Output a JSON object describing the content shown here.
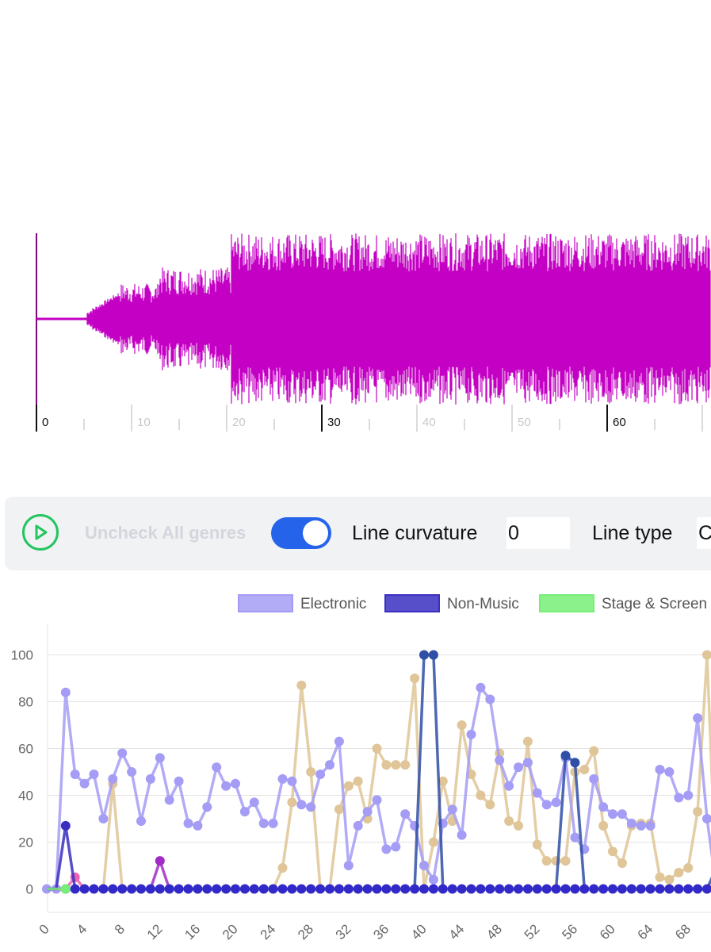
{
  "waveform": {
    "color": "#c400c4",
    "time_ticks": [
      "0",
      "10",
      "20",
      "30",
      "40",
      "50",
      "60"
    ],
    "highlighted_ticks": [
      "0",
      "30",
      "60"
    ]
  },
  "controls": {
    "play_icon": "play-circle-icon",
    "uncheck_label": "Uncheck All genres",
    "toggle_on": true,
    "curvature_label": "Line curvature",
    "curvature_value": "0",
    "linetype_label": "Line type",
    "linetype_value": "C"
  },
  "chart_data": {
    "type": "line",
    "title": "",
    "xlabel": "",
    "ylabel": "",
    "ylim": [
      -10,
      110
    ],
    "yticks": [
      0,
      20,
      40,
      60,
      80,
      100
    ],
    "x": [
      0,
      1,
      2,
      3,
      4,
      5,
      6,
      7,
      8,
      9,
      10,
      11,
      12,
      13,
      14,
      15,
      16,
      17,
      18,
      19,
      20,
      21,
      22,
      23,
      24,
      25,
      26,
      27,
      28,
      29,
      30,
      31,
      32,
      33,
      34,
      35,
      36,
      37,
      38,
      39,
      40,
      41,
      42,
      43,
      44,
      45,
      46,
      47,
      48,
      49,
      50,
      51,
      52,
      53,
      54,
      55,
      56,
      57,
      58,
      59,
      60,
      61,
      62,
      63,
      64,
      65,
      66,
      67,
      68,
      69,
      70,
      71
    ],
    "xticks": [
      0,
      4,
      8,
      12,
      16,
      20,
      24,
      28,
      32,
      36,
      40,
      44,
      48,
      52,
      56,
      60,
      64,
      68
    ],
    "legend_position": "top",
    "series": [
      {
        "name": "Electronic",
        "color": "#a49cf5",
        "values": [
          0,
          0,
          84,
          49,
          45,
          49,
          30,
          47,
          58,
          50,
          29,
          47,
          56,
          38,
          46,
          28,
          27,
          35,
          52,
          44,
          45,
          33,
          37,
          28,
          28,
          47,
          46,
          36,
          35,
          49,
          53,
          63,
          10,
          27,
          33,
          38,
          17,
          18,
          32,
          27,
          10,
          4,
          28,
          34,
          23,
          66,
          86,
          81,
          55,
          44,
          52,
          54,
          41,
          36,
          37,
          56,
          22,
          17,
          47,
          35,
          32,
          32,
          28,
          27,
          27,
          51,
          50,
          39,
          40,
          73,
          30,
          0
        ]
      },
      {
        "name": "Non-Music",
        "color": "#3a2fc1",
        "values": [
          0,
          0,
          27,
          0,
          0,
          0,
          0,
          0,
          0,
          0,
          0,
          0,
          0,
          0,
          0,
          0,
          0,
          0,
          0,
          0,
          0,
          0,
          0,
          0,
          0,
          0,
          0,
          0,
          0,
          0,
          0,
          0,
          0,
          0,
          0,
          0,
          0,
          0,
          0,
          0,
          0,
          0,
          0,
          0,
          0,
          0,
          0,
          0,
          0,
          0,
          0,
          0,
          0,
          0,
          0,
          0,
          0,
          0,
          0,
          0,
          0,
          0,
          0,
          0,
          0,
          0,
          0,
          0,
          0,
          0,
          0,
          0
        ]
      },
      {
        "name": "Stage & Screen",
        "color": "#77ee77",
        "values": [
          0,
          0,
          0,
          0,
          0,
          0,
          0,
          0,
          0,
          0,
          0,
          0,
          0,
          0,
          0,
          0,
          0,
          0,
          0,
          0,
          0,
          0,
          0,
          0,
          0,
          0,
          0,
          0,
          0,
          0,
          0,
          0,
          0,
          0,
          0,
          0,
          0,
          0,
          0,
          0,
          0,
          0,
          0,
          0,
          0,
          0,
          0,
          0,
          0,
          0,
          0,
          0,
          0,
          0,
          0,
          0,
          0,
          0,
          0,
          0,
          0,
          0,
          0,
          0,
          0,
          0,
          0,
          0,
          0,
          0,
          0,
          0
        ]
      },
      {
        "name": "",
        "color": "#dfc597",
        "values": [
          0,
          0,
          0,
          0,
          0,
          0,
          0,
          45,
          0,
          0,
          0,
          0,
          0,
          0,
          0,
          0,
          0,
          0,
          0,
          0,
          0,
          0,
          0,
          0,
          0,
          9,
          37,
          87,
          50,
          0,
          0,
          34,
          44,
          46,
          30,
          60,
          53,
          53,
          53,
          90,
          0,
          20,
          46,
          29,
          70,
          49,
          40,
          36,
          58,
          29,
          27,
          63,
          19,
          12,
          12,
          12,
          50,
          51,
          59,
          27,
          16,
          11,
          27,
          28,
          28,
          5,
          4,
          7,
          9,
          33,
          100,
          0
        ]
      },
      {
        "name": "",
        "color": "#2f4fa6",
        "values": [
          0,
          0,
          0,
          0,
          0,
          0,
          0,
          0,
          0,
          0,
          0,
          0,
          0,
          0,
          0,
          0,
          0,
          0,
          0,
          0,
          0,
          0,
          0,
          0,
          0,
          0,
          0,
          0,
          0,
          0,
          0,
          0,
          0,
          0,
          0,
          0,
          0,
          0,
          0,
          0,
          100,
          100,
          0,
          0,
          0,
          0,
          0,
          0,
          0,
          0,
          0,
          0,
          0,
          0,
          0,
          57,
          54,
          0,
          0,
          0,
          0,
          0,
          0,
          0,
          0,
          0,
          0,
          0,
          0,
          0,
          0,
          9
        ]
      },
      {
        "name": "",
        "color": "#a12bc6",
        "values": [
          0,
          0,
          0,
          0,
          0,
          0,
          0,
          0,
          0,
          0,
          0,
          0,
          12,
          0,
          0,
          0,
          0,
          0,
          0,
          0,
          0,
          0,
          0,
          0,
          0,
          0,
          0,
          0,
          0,
          0,
          0,
          0,
          0,
          0,
          0,
          0,
          0,
          0,
          0,
          0,
          0,
          0,
          0,
          0,
          0,
          0,
          0,
          0,
          0,
          0,
          0,
          0,
          0,
          0,
          0,
          0,
          0,
          0,
          0,
          0,
          0,
          0,
          0,
          0,
          0,
          0,
          0,
          0,
          0,
          0,
          0,
          0
        ]
      },
      {
        "name": "",
        "color": "#f062b0",
        "values": [
          0,
          0,
          0,
          5,
          0,
          0,
          0,
          0,
          0,
          0,
          0,
          0,
          0,
          0,
          0,
          0,
          0,
          0,
          0,
          0,
          0,
          0,
          0,
          0,
          0,
          0,
          0,
          0,
          0,
          0,
          0,
          0,
          0,
          0,
          0,
          0,
          0,
          0,
          0,
          0,
          0,
          0,
          0,
          0,
          0,
          0,
          0,
          0,
          0,
          0,
          0,
          0,
          0,
          0,
          0,
          0,
          0,
          0,
          0,
          0,
          0,
          0,
          0,
          0,
          0,
          0,
          0,
          0,
          0,
          0,
          0,
          2
        ]
      }
    ],
    "baseline_series_color": "#3328c8"
  }
}
